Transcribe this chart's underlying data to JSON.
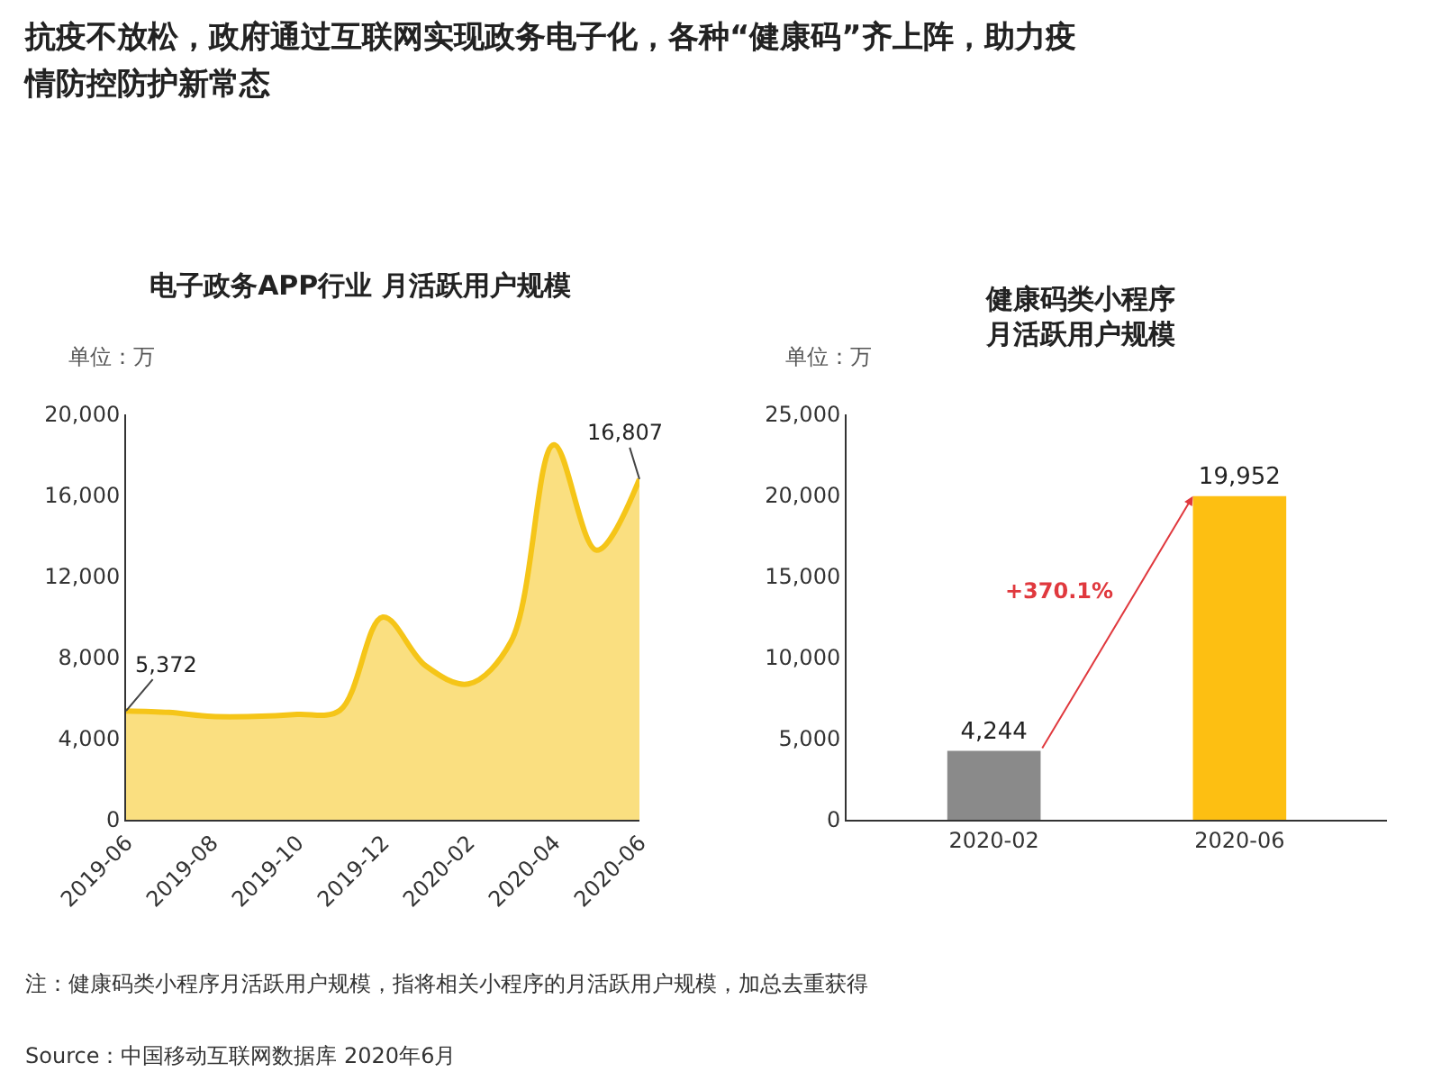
{
  "chart_data": [
    {
      "type": "area",
      "title": "抗疫不放松，政府通过互联网实现政务电子化，各种“健康码”齐上阵，助力疫情防控防护新常态",
      "subtitle": "电子政务APP行业 月活跃用户规模",
      "categories": [
        "2019-06",
        null,
        "2019-08",
        null,
        "2019-10",
        null,
        "2019-12",
        null,
        "2020-02",
        null,
        "2020-04",
        null,
        "2020-06"
      ],
      "values": [
        5372,
        5300,
        5100,
        5100,
        5200,
        5400,
        10000,
        7600,
        6700,
        8800,
        18500,
        13300,
        16807
      ],
      "value_labels": [
        "5,372",
        null,
        null,
        null,
        null,
        null,
        null,
        null,
        null,
        null,
        null,
        null,
        "16,807"
      ],
      "color": "#f5c518",
      "ylim": [
        0,
        20000
      ],
      "yticks": [
        0,
        {
          "value": 4000,
          "label": "4,000"
        },
        {
          "value": 8000,
          "label": "8,000"
        },
        {
          "value": 12000,
          "label": "12,000"
        },
        {
          "value": 16000,
          "label": "16,000"
        },
        {
          "value": 20000,
          "label": "20,000"
        }
      ],
      "annotations": [
        "单位：万"
      ]
    },
    {
      "type": "bar",
      "title": "健康码类小程序月活跃用户规模",
      "categories": [
        "2020-02",
        "2020-06"
      ],
      "values": [
        4244,
        19952
      ],
      "colors": [
        "#8a8a8a",
        "#fdbf12"
      ],
      "value_labels": [
        "4,244",
        "19,952"
      ],
      "ylim": [
        0,
        25000
      ],
      "yticks": [
        0,
        {
          "value": 5000,
          "label": "5,000"
        },
        {
          "value": 10000,
          "label": "10,000"
        },
        {
          "value": 15000,
          "label": "15,000"
        },
        {
          "value": 20000,
          "label": "20,000"
        },
        {
          "value": 25000,
          "label": "25,000"
        }
      ],
      "annotations": [
        "单位：万",
        "+370.1%",
        "注：健康码类小程序月活跃用户规模，指将相关小程序的月活跃用户规模，加总去重获得",
        "Source：中国移动互联网数据库 2020年6月"
      ]
    }
  ]
}
